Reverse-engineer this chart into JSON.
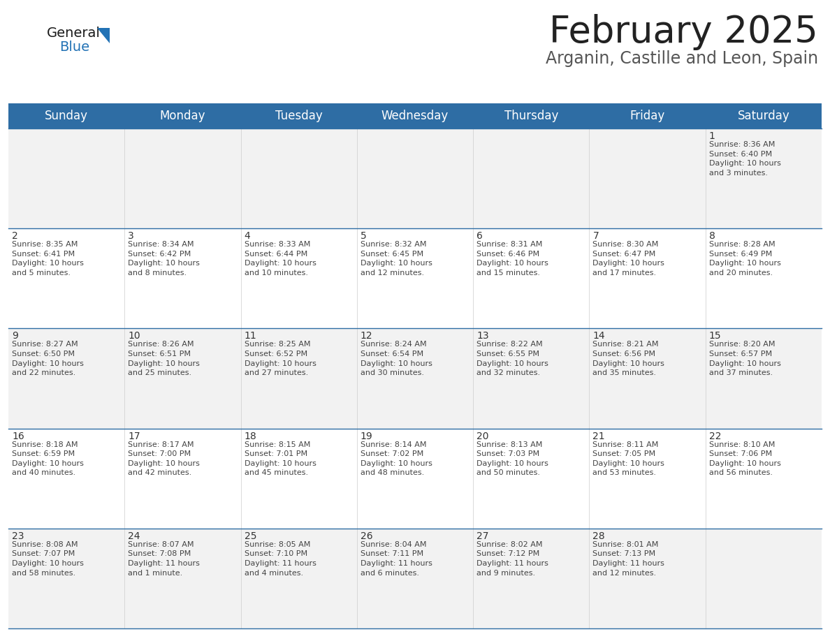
{
  "title": "February 2025",
  "subtitle": "Arganin, Castille and Leon, Spain",
  "header_bg": "#2E6DA4",
  "header_text_color": "#FFFFFF",
  "cell_bg_odd": "#F2F2F2",
  "cell_bg_even": "#FFFFFF",
  "text_color": "#444444",
  "day_number_color": "#333333",
  "line_color": "#2E6DA4",
  "days_of_week": [
    "Sunday",
    "Monday",
    "Tuesday",
    "Wednesday",
    "Thursday",
    "Friday",
    "Saturday"
  ],
  "weeks": [
    [
      {
        "day": null,
        "info": null
      },
      {
        "day": null,
        "info": null
      },
      {
        "day": null,
        "info": null
      },
      {
        "day": null,
        "info": null
      },
      {
        "day": null,
        "info": null
      },
      {
        "day": null,
        "info": null
      },
      {
        "day": "1",
        "info": "Sunrise: 8:36 AM\nSunset: 6:40 PM\nDaylight: 10 hours\nand 3 minutes."
      }
    ],
    [
      {
        "day": "2",
        "info": "Sunrise: 8:35 AM\nSunset: 6:41 PM\nDaylight: 10 hours\nand 5 minutes."
      },
      {
        "day": "3",
        "info": "Sunrise: 8:34 AM\nSunset: 6:42 PM\nDaylight: 10 hours\nand 8 minutes."
      },
      {
        "day": "4",
        "info": "Sunrise: 8:33 AM\nSunset: 6:44 PM\nDaylight: 10 hours\nand 10 minutes."
      },
      {
        "day": "5",
        "info": "Sunrise: 8:32 AM\nSunset: 6:45 PM\nDaylight: 10 hours\nand 12 minutes."
      },
      {
        "day": "6",
        "info": "Sunrise: 8:31 AM\nSunset: 6:46 PM\nDaylight: 10 hours\nand 15 minutes."
      },
      {
        "day": "7",
        "info": "Sunrise: 8:30 AM\nSunset: 6:47 PM\nDaylight: 10 hours\nand 17 minutes."
      },
      {
        "day": "8",
        "info": "Sunrise: 8:28 AM\nSunset: 6:49 PM\nDaylight: 10 hours\nand 20 minutes."
      }
    ],
    [
      {
        "day": "9",
        "info": "Sunrise: 8:27 AM\nSunset: 6:50 PM\nDaylight: 10 hours\nand 22 minutes."
      },
      {
        "day": "10",
        "info": "Sunrise: 8:26 AM\nSunset: 6:51 PM\nDaylight: 10 hours\nand 25 minutes."
      },
      {
        "day": "11",
        "info": "Sunrise: 8:25 AM\nSunset: 6:52 PM\nDaylight: 10 hours\nand 27 minutes."
      },
      {
        "day": "12",
        "info": "Sunrise: 8:24 AM\nSunset: 6:54 PM\nDaylight: 10 hours\nand 30 minutes."
      },
      {
        "day": "13",
        "info": "Sunrise: 8:22 AM\nSunset: 6:55 PM\nDaylight: 10 hours\nand 32 minutes."
      },
      {
        "day": "14",
        "info": "Sunrise: 8:21 AM\nSunset: 6:56 PM\nDaylight: 10 hours\nand 35 minutes."
      },
      {
        "day": "15",
        "info": "Sunrise: 8:20 AM\nSunset: 6:57 PM\nDaylight: 10 hours\nand 37 minutes."
      }
    ],
    [
      {
        "day": "16",
        "info": "Sunrise: 8:18 AM\nSunset: 6:59 PM\nDaylight: 10 hours\nand 40 minutes."
      },
      {
        "day": "17",
        "info": "Sunrise: 8:17 AM\nSunset: 7:00 PM\nDaylight: 10 hours\nand 42 minutes."
      },
      {
        "day": "18",
        "info": "Sunrise: 8:15 AM\nSunset: 7:01 PM\nDaylight: 10 hours\nand 45 minutes."
      },
      {
        "day": "19",
        "info": "Sunrise: 8:14 AM\nSunset: 7:02 PM\nDaylight: 10 hours\nand 48 minutes."
      },
      {
        "day": "20",
        "info": "Sunrise: 8:13 AM\nSunset: 7:03 PM\nDaylight: 10 hours\nand 50 minutes."
      },
      {
        "day": "21",
        "info": "Sunrise: 8:11 AM\nSunset: 7:05 PM\nDaylight: 10 hours\nand 53 minutes."
      },
      {
        "day": "22",
        "info": "Sunrise: 8:10 AM\nSunset: 7:06 PM\nDaylight: 10 hours\nand 56 minutes."
      }
    ],
    [
      {
        "day": "23",
        "info": "Sunrise: 8:08 AM\nSunset: 7:07 PM\nDaylight: 10 hours\nand 58 minutes."
      },
      {
        "day": "24",
        "info": "Sunrise: 8:07 AM\nSunset: 7:08 PM\nDaylight: 11 hours\nand 1 minute."
      },
      {
        "day": "25",
        "info": "Sunrise: 8:05 AM\nSunset: 7:10 PM\nDaylight: 11 hours\nand 4 minutes."
      },
      {
        "day": "26",
        "info": "Sunrise: 8:04 AM\nSunset: 7:11 PM\nDaylight: 11 hours\nand 6 minutes."
      },
      {
        "day": "27",
        "info": "Sunrise: 8:02 AM\nSunset: 7:12 PM\nDaylight: 11 hours\nand 9 minutes."
      },
      {
        "day": "28",
        "info": "Sunrise: 8:01 AM\nSunset: 7:13 PM\nDaylight: 11 hours\nand 12 minutes."
      },
      {
        "day": null,
        "info": null
      }
    ]
  ],
  "logo_color_general": "#1a1a1a",
  "logo_color_blue": "#2272B5",
  "title_fontsize": 38,
  "subtitle_fontsize": 17,
  "header_fontsize": 12,
  "day_num_fontsize": 10,
  "info_fontsize": 8
}
